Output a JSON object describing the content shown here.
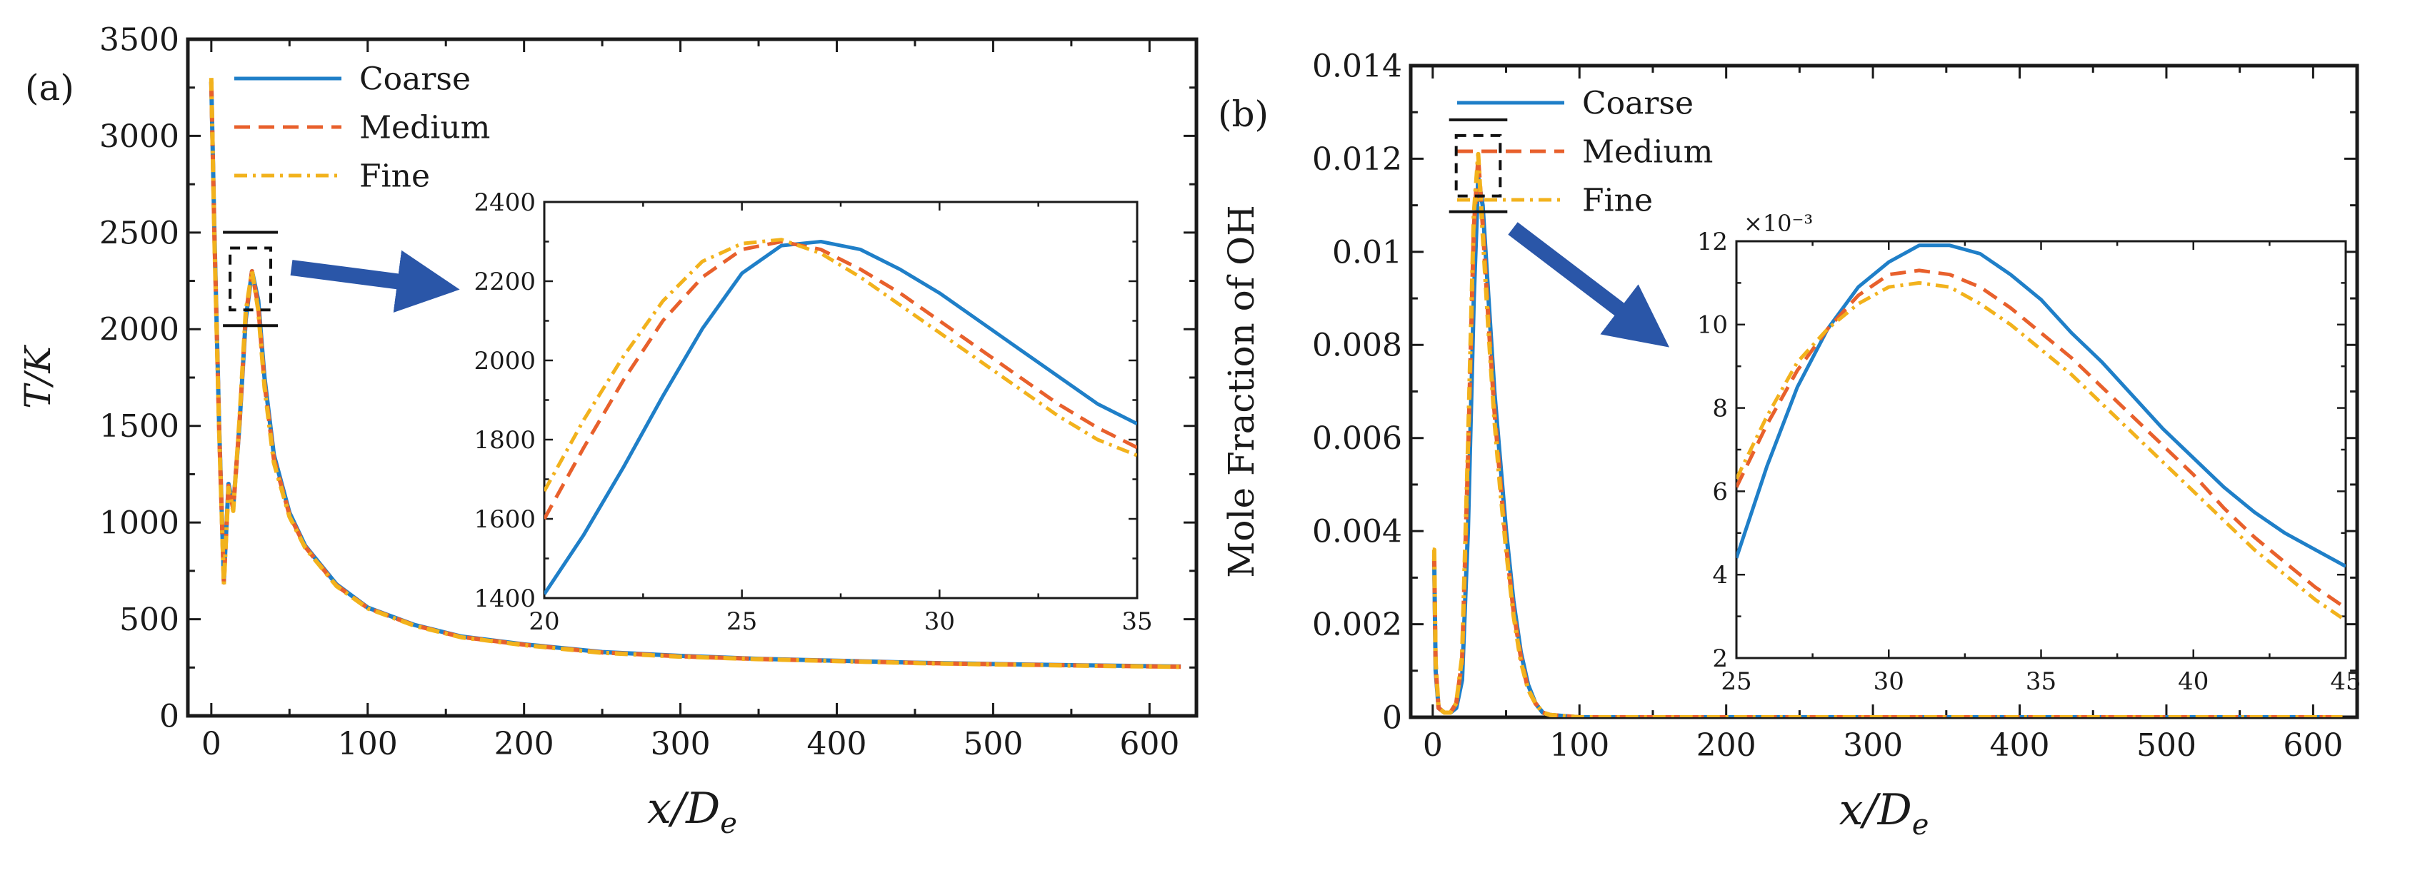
{
  "chart_data": [
    {
      "type": "line",
      "panel_label": "(a)",
      "xlabel": "x/D",
      "xlabel_sub": "e",
      "ylabel": "T/K",
      "xlim": [
        -15,
        630
      ],
      "ylim": [
        0,
        3500
      ],
      "xticks": [
        0,
        100,
        200,
        300,
        400,
        500,
        600
      ],
      "yticks": [
        0,
        500,
        1000,
        1500,
        2000,
        2500,
        3000,
        3500
      ],
      "legend": [
        "Coarse",
        "Medium",
        "Fine"
      ],
      "series": [
        {
          "name": "Coarse",
          "color": "#1f7fc8",
          "dash": "solid",
          "x": [
            0,
            2,
            5,
            8,
            11,
            14,
            18,
            22,
            26,
            30,
            34,
            40,
            50,
            60,
            80,
            100,
            130,
            160,
            200,
            250,
            300,
            350,
            400,
            450,
            500,
            550,
            600,
            620
          ],
          "y": [
            3280,
            2500,
            1500,
            700,
            1200,
            1080,
            1500,
            2050,
            2300,
            2150,
            1750,
            1350,
            1050,
            880,
            680,
            560,
            470,
            410,
            370,
            330,
            310,
            295,
            285,
            275,
            268,
            262,
            257,
            255
          ]
        },
        {
          "name": "Medium",
          "color": "#e8602c",
          "dash": "dashed",
          "x": [
            0,
            2,
            5,
            8,
            11,
            14,
            18,
            22,
            26,
            30,
            34,
            40,
            50,
            60,
            80,
            100,
            130,
            160,
            200,
            250,
            300,
            350,
            400,
            450,
            500,
            550,
            600,
            620
          ],
          "y": [
            3280,
            2480,
            1480,
            690,
            1190,
            1070,
            1510,
            2070,
            2300,
            2120,
            1720,
            1330,
            1040,
            875,
            675,
            558,
            468,
            408,
            368,
            328,
            308,
            294,
            284,
            274,
            267,
            261,
            256,
            254
          ]
        },
        {
          "name": "Fine",
          "color": "#f2b21c",
          "dash": "dashdot",
          "x": [
            0,
            2,
            5,
            8,
            11,
            14,
            18,
            22,
            26,
            30,
            34,
            40,
            50,
            60,
            80,
            100,
            130,
            160,
            200,
            250,
            300,
            350,
            400,
            450,
            500,
            550,
            600,
            620
          ],
          "y": [
            3300,
            2460,
            1470,
            680,
            1180,
            1060,
            1530,
            2090,
            2300,
            2100,
            1700,
            1310,
            1030,
            870,
            672,
            556,
            466,
            406,
            366,
            326,
            306,
            293,
            283,
            273,
            266,
            260,
            255,
            253
          ]
        }
      ],
      "inset": {
        "xlim": [
          20,
          35
        ],
        "ylim": [
          1400,
          2400
        ],
        "xticks": [
          20,
          25,
          30,
          35
        ],
        "yticks": [
          1400,
          1600,
          1800,
          2000,
          2200,
          2400
        ],
        "series": [
          {
            "name": "Coarse",
            "color": "#1f7fc8",
            "dash": "solid",
            "x": [
              20,
              21,
              22,
              23,
              24,
              25,
              26,
              27,
              28,
              29,
              30,
              31,
              32,
              33,
              34,
              35
            ],
            "y": [
              1410,
              1560,
              1730,
              1910,
              2080,
              2220,
              2290,
              2300,
              2280,
              2230,
              2170,
              2100,
              2030,
              1960,
              1890,
              1840
            ]
          },
          {
            "name": "Medium",
            "color": "#e8602c",
            "dash": "dashed",
            "x": [
              20,
              21,
              22,
              23,
              24,
              25,
              26,
              27,
              28,
              29,
              30,
              31,
              32,
              33,
              34,
              35
            ],
            "y": [
              1600,
              1780,
              1950,
              2100,
              2210,
              2280,
              2300,
              2280,
              2230,
              2170,
              2100,
              2030,
              1960,
              1890,
              1830,
              1780
            ]
          },
          {
            "name": "Fine",
            "color": "#f2b21c",
            "dash": "dashdot",
            "x": [
              20,
              21,
              22,
              23,
              24,
              25,
              26,
              27,
              28,
              29,
              30,
              31,
              32,
              33,
              34,
              35
            ],
            "y": [
              1670,
              1850,
              2010,
              2150,
              2250,
              2295,
              2305,
              2270,
              2210,
              2140,
              2070,
              2000,
              1930,
              1860,
              1800,
              1760
            ]
          }
        ]
      }
    },
    {
      "type": "line",
      "panel_label": "(b)",
      "xlabel": "x/D",
      "xlabel_sub": "e",
      "ylabel": "Mole Fraction of OH",
      "xlim": [
        -15,
        630
      ],
      "ylim": [
        0,
        0.014
      ],
      "xticks": [
        0,
        100,
        200,
        300,
        400,
        500,
        600
      ],
      "yticks": [
        0,
        0.002,
        0.004,
        0.006,
        0.008,
        0.01,
        0.012,
        0.014
      ],
      "ytick_labels": [
        "0",
        "0.002",
        "0.004",
        "0.006",
        "0.008",
        "0.01",
        "0.012",
        "0.014"
      ],
      "legend": [
        "Coarse",
        "Medium",
        "Fine"
      ],
      "series": [
        {
          "name": "Coarse",
          "color": "#1f7fc8",
          "dash": "solid",
          "x": [
            0,
            1,
            2,
            4,
            8,
            12,
            16,
            20,
            24,
            28,
            31,
            34,
            38,
            42,
            46,
            50,
            55,
            60,
            65,
            70,
            75,
            80,
            100,
            200,
            300,
            400,
            500,
            600,
            620
          ],
          "y": [
            0.0034,
            0.0034,
            0.001,
            0.0002,
            0.0001,
            0.0001,
            0.0002,
            0.0008,
            0.004,
            0.009,
            0.0116,
            0.011,
            0.009,
            0.007,
            0.0055,
            0.004,
            0.0025,
            0.0014,
            0.0007,
            0.0003,
            0.0001,
            5e-05,
            0.0,
            0.0,
            0.0,
            0.0,
            0.0,
            0.0,
            0.0
          ]
        },
        {
          "name": "Medium",
          "color": "#e8602c",
          "dash": "dashed",
          "x": [
            0,
            1,
            2,
            4,
            8,
            12,
            16,
            20,
            24,
            28,
            31,
            34,
            38,
            42,
            46,
            50,
            55,
            60,
            65,
            70,
            75,
            80,
            100,
            200,
            300,
            400,
            500,
            600,
            620
          ],
          "y": [
            0.0035,
            0.0035,
            0.0011,
            0.0002,
            0.0001,
            0.0001,
            0.0003,
            0.0012,
            0.0055,
            0.0105,
            0.012,
            0.0106,
            0.0085,
            0.0066,
            0.0051,
            0.0037,
            0.0023,
            0.0013,
            0.0006,
            0.0003,
            0.0001,
            5e-05,
            0.0,
            0.0,
            0.0,
            0.0,
            0.0,
            0.0,
            0.0
          ]
        },
        {
          "name": "Fine",
          "color": "#f2b21c",
          "dash": "dashdot",
          "x": [
            0,
            1,
            2,
            4,
            8,
            12,
            16,
            20,
            24,
            28,
            31,
            34,
            38,
            42,
            46,
            50,
            55,
            60,
            65,
            70,
            75,
            80,
            100,
            200,
            300,
            400,
            500,
            600,
            620
          ],
          "y": [
            0.0036,
            0.0036,
            0.0012,
            0.0002,
            0.0001,
            0.0001,
            0.0003,
            0.0013,
            0.0058,
            0.0108,
            0.0121,
            0.0104,
            0.0083,
            0.0064,
            0.0049,
            0.0036,
            0.0022,
            0.0012,
            0.0006,
            0.0003,
            0.0001,
            5e-05,
            0.0,
            0.0,
            0.0,
            0.0,
            0.0,
            0.0,
            0.0
          ]
        }
      ],
      "inset": {
        "xlim": [
          25,
          45
        ],
        "ylim": [
          2,
          12
        ],
        "xticks": [
          25,
          30,
          35,
          40,
          45
        ],
        "yticks": [
          2,
          4,
          6,
          8,
          10,
          12
        ],
        "exponent_label": "×10⁻³",
        "series": [
          {
            "name": "Coarse",
            "color": "#1f7fc8",
            "dash": "solid",
            "x": [
              25,
              26,
              27,
              28,
              29,
              30,
              31,
              32,
              33,
              34,
              35,
              36,
              37,
              38,
              39,
              40,
              41,
              42,
              43,
              44,
              45
            ],
            "y": [
              4.4,
              6.6,
              8.5,
              9.9,
              10.9,
              11.5,
              11.9,
              11.9,
              11.7,
              11.2,
              10.6,
              9.8,
              9.1,
              8.3,
              7.5,
              6.8,
              6.1,
              5.5,
              5.0,
              4.6,
              4.2
            ]
          },
          {
            "name": "Medium",
            "color": "#e8602c",
            "dash": "dashed",
            "x": [
              25,
              26,
              27,
              28,
              29,
              30,
              31,
              32,
              33,
              34,
              35,
              36,
              37,
              38,
              39,
              40,
              41,
              42,
              43,
              44,
              45
            ],
            "y": [
              6.1,
              7.6,
              8.9,
              9.9,
              10.7,
              11.2,
              11.3,
              11.2,
              10.9,
              10.4,
              9.8,
              9.2,
              8.5,
              7.8,
              7.1,
              6.4,
              5.6,
              4.9,
              4.3,
              3.7,
              3.2
            ]
          },
          {
            "name": "Fine",
            "color": "#f2b21c",
            "dash": "dashdot",
            "x": [
              25,
              26,
              27,
              28,
              29,
              30,
              31,
              32,
              33,
              34,
              35,
              36,
              37,
              38,
              39,
              40,
              41,
              42,
              43,
              44,
              45
            ],
            "y": [
              6.3,
              7.8,
              9.1,
              9.9,
              10.5,
              10.9,
              11.0,
              10.9,
              10.5,
              10.0,
              9.4,
              8.8,
              8.1,
              7.4,
              6.7,
              6.0,
              5.3,
              4.6,
              4.0,
              3.4,
              2.9
            ]
          }
        ]
      }
    }
  ]
}
